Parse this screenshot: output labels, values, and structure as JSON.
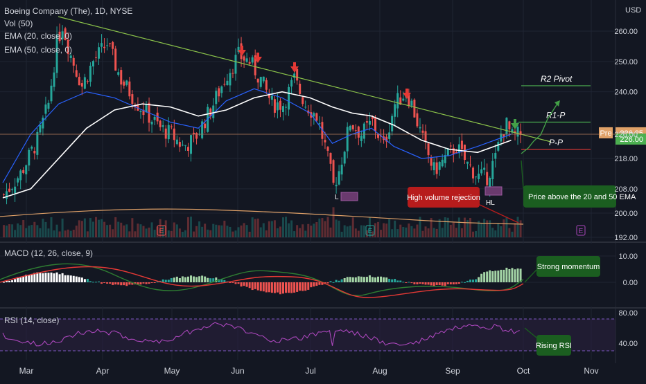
{
  "header": {
    "title": "Boeing Company (The), 1D, NYSE",
    "indicators": [
      "Vol (50)",
      "EMA (20, close, 0)",
      "EMA (50, close, 0)"
    ]
  },
  "currency": "USD",
  "colors": {
    "background": "#131722",
    "up": "#26a69a",
    "down": "#ef5350",
    "grid": "#1f2433",
    "ema20": "#2962ff",
    "ema50": "#ffffff",
    "trendline": "#8bc34a",
    "pivot_red": "#e53935",
    "pivot_green": "#4caf50",
    "price_badge": "#4caf50",
    "pre_badge": "#e0a168",
    "macd_line": "#2e7d32",
    "signal_line": "#e53935",
    "rsi": "#ab47bc",
    "arrow_red": "#e53935",
    "arrow_green": "#43a047"
  },
  "chart_data": [
    {
      "type": "candlestick",
      "title": "Boeing Company (The), 1D, NYSE",
      "x_ticks": [
        "Mar",
        "Apr",
        "May",
        "Jun",
        "Jul",
        "Aug",
        "Sep",
        "Oct",
        "Nov"
      ],
      "y_ticks": [
        192,
        200,
        208,
        218,
        226,
        240,
        250,
        260
      ],
      "ylim": [
        192,
        268
      ],
      "ema_lines": [
        {
          "name": "EMA (20, close, 0)",
          "values": [
            [
              0,
              210
            ],
            [
              10,
              226
            ],
            [
              20,
              236
            ],
            [
              30,
              240
            ],
            [
              40,
              238
            ],
            [
              50,
              234
            ],
            [
              60,
              230
            ],
            [
              70,
              228
            ],
            [
              80,
              237
            ],
            [
              90,
              241
            ],
            [
              100,
              238
            ],
            [
              110,
              233
            ],
            [
              118,
              223
            ],
            [
              125,
              226
            ],
            [
              132,
              228
            ],
            [
              140,
              222
            ],
            [
              150,
              218
            ],
            [
              160,
              219
            ],
            [
              170,
              222
            ],
            [
              182,
              226
            ]
          ]
        },
        {
          "name": "EMA (50, close, 0)",
          "values": [
            [
              0,
              205
            ],
            [
              10,
              208
            ],
            [
              20,
              218
            ],
            [
              30,
              228
            ],
            [
              40,
              234
            ],
            [
              50,
              236
            ],
            [
              60,
              235
            ],
            [
              70,
              232
            ],
            [
              80,
              234
            ],
            [
              90,
              238
            ],
            [
              100,
              240
            ],
            [
              110,
              238
            ],
            [
              118,
              235
            ],
            [
              125,
              233
            ],
            [
              132,
              232
            ],
            [
              140,
              229
            ],
            [
              150,
              224
            ],
            [
              160,
              221
            ],
            [
              170,
              220
            ],
            [
              182,
              224
            ]
          ]
        }
      ],
      "current_price": 226.0,
      "pre_market_price": 226.25,
      "pre_label": "Pre",
      "pivot_levels": [
        {
          "label": "R2 Pivot",
          "value": 242
        },
        {
          "label": "R1-P",
          "value": 230
        },
        {
          "label": "P-P",
          "value": 221
        }
      ],
      "annotations": [
        {
          "text": "L",
          "x": 118,
          "y": 209
        },
        {
          "text": "HL",
          "x": 172,
          "y": 212
        },
        {
          "text": "High volume rejection"
        },
        {
          "text": "Price above the 20 and 50 EMA"
        }
      ],
      "earnings_markers": [
        "E",
        "E",
        "E"
      ]
    },
    {
      "type": "bar",
      "title": "MACD (12, 26, close, 9)",
      "y_ticks": [
        10.0,
        0.0
      ],
      "annotation": "Strong momentum"
    },
    {
      "type": "line",
      "title": "RSI (14, close)",
      "y_ticks": [
        80.0,
        40.0
      ],
      "annotation": "Rising RSI"
    }
  ]
}
